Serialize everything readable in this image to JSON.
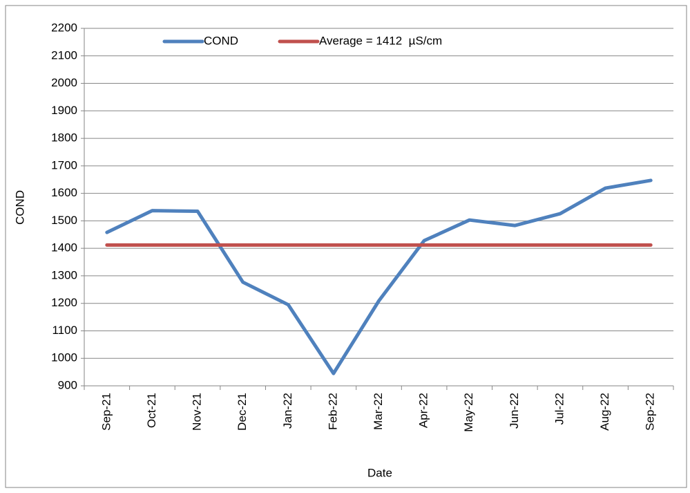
{
  "chart_data": {
    "type": "line",
    "x_label": "Date",
    "y_label": "COND",
    "categories": [
      "Sep-21",
      "Oct-21",
      "Nov-21",
      "Dec-21",
      "Jan-22",
      "Feb-22",
      "Mar-22",
      "Apr-22",
      "May-22",
      "Jun-22",
      "Jul-22",
      "Aug-22",
      "Sep-22"
    ],
    "series": [
      {
        "name": "COND",
        "color": "#4f81bd",
        "values": [
          1458,
          1537,
          1535,
          1277,
          1195,
          945,
          1209,
          1428,
          1503,
          1483,
          1526,
          1619,
          1647
        ]
      },
      {
        "name": "Average = 1412  µS/cm",
        "color": "#c0504d",
        "values": [
          1412,
          1412,
          1412,
          1412,
          1412,
          1412,
          1412,
          1412,
          1412,
          1412,
          1412,
          1412,
          1412
        ]
      }
    ],
    "ylim": [
      900,
      2200
    ],
    "yticks": [
      900,
      1000,
      1100,
      1200,
      1300,
      1400,
      1500,
      1600,
      1700,
      1800,
      1900,
      2000,
      2100,
      2200
    ],
    "grid": true,
    "legend": "top"
  }
}
